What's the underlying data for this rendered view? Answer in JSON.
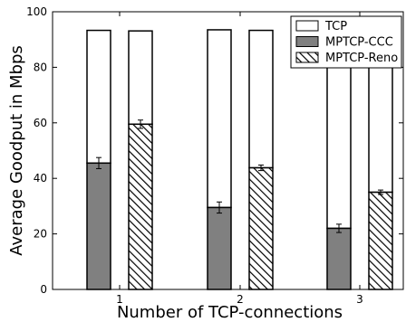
{
  "chart_data": {
    "type": "bar",
    "xlabel": "Number of TCP-connections",
    "ylabel": "Average Goodput in Mbps",
    "ylim": [
      0,
      100
    ],
    "yticks": [
      0,
      20,
      40,
      60,
      80,
      100
    ],
    "categories": [
      "1",
      "2",
      "3"
    ],
    "bar_pairs": [
      "MPTCP-CCC",
      "MPTCP-Reno"
    ],
    "series": [
      {
        "name": "TCP",
        "stacked_total": {
          "MPTCP-CCC": [
            93.3,
            93.5,
            93.5
          ],
          "MPTCP-Reno": [
            93.1,
            93.3,
            93.3
          ]
        },
        "fill": "#ffffff",
        "pattern": "none"
      },
      {
        "name": "MPTCP-CCC",
        "values": [
          45.5,
          29.5,
          22.0
        ],
        "error": [
          2.0,
          2.0,
          1.5
        ],
        "fill": "#808080",
        "pattern": "none"
      },
      {
        "name": "MPTCP-Reno",
        "values": [
          59.5,
          43.8,
          35.0
        ],
        "error": [
          1.5,
          1.0,
          0.8
        ],
        "fill": "#ffffff",
        "pattern": "diagonal-hatch"
      }
    ],
    "legend": {
      "placement": "top-right",
      "items": [
        {
          "name": "TCP",
          "fill": "#ffffff",
          "pattern": "none"
        },
        {
          "name": "MPTCP-CCC",
          "fill": "#808080",
          "pattern": "none"
        },
        {
          "name": "MPTCP-Reno",
          "fill": "#ffffff",
          "pattern": "diagonal-hatch"
        }
      ]
    },
    "grid": false
  }
}
